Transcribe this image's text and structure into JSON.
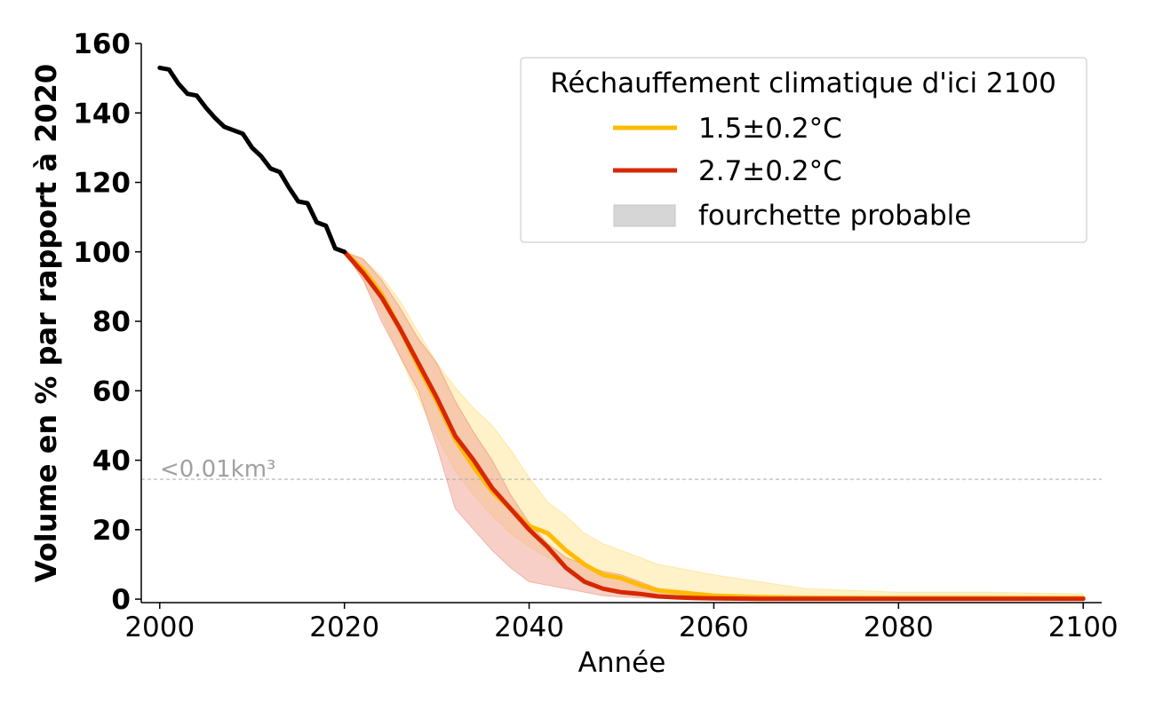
{
  "chart_data": {
    "type": "line",
    "title": "",
    "xlabel": "Année",
    "ylabel": "Volume en % par rapport à 2020",
    "xlim": [
      1998,
      2102
    ],
    "ylim": [
      -1,
      160
    ],
    "xticks": [
      2000,
      2020,
      2040,
      2060,
      2080,
      2100
    ],
    "yticks": [
      0,
      20,
      40,
      60,
      80,
      100,
      120,
      140,
      160
    ],
    "grid": false,
    "legend": {
      "title": "Réchauffement climatique d'ici 2100",
      "placement": "top-right",
      "entries": [
        "1.5±0.2°C",
        "2.7±0.2°C",
        "fourchette probable"
      ]
    },
    "threshold": {
      "y": 34.5,
      "label": "<0.01km³",
      "color": "#b0b0b0"
    },
    "historical": {
      "color": "#000000",
      "x": [
        2000,
        2001,
        2002,
        2003,
        2004,
        2005,
        2006,
        2007,
        2008,
        2009,
        2010,
        2011,
        2012,
        2013,
        2014,
        2015,
        2016,
        2017,
        2018,
        2019,
        2020
      ],
      "y": [
        153,
        152.5,
        148.5,
        145.5,
        145,
        141.5,
        138.5,
        136,
        135,
        134,
        130,
        127.5,
        124,
        123,
        118.5,
        114.5,
        114,
        108.5,
        107.5,
        101,
        100
      ]
    },
    "series": [
      {
        "name": "1.5±0.2°C",
        "color": "#ffbb00",
        "band_color": "#ffe8a3",
        "x": [
          2020,
          2022,
          2024,
          2026,
          2028,
          2030,
          2032,
          2034,
          2036,
          2038,
          2040,
          2042,
          2044,
          2046,
          2048,
          2050,
          2052,
          2054,
          2056,
          2058,
          2060,
          2065,
          2070,
          2080,
          2090,
          2100
        ],
        "y": [
          100,
          95,
          88,
          78,
          67,
          57,
          46,
          38,
          31,
          26,
          21,
          19,
          14,
          10,
          7,
          6,
          4,
          2.5,
          2,
          1.5,
          1,
          0.6,
          0.4,
          0.3,
          0.3,
          0.3
        ],
        "lower": [
          100,
          92,
          82,
          70,
          58,
          47,
          37,
          30,
          24,
          19,
          15,
          12,
          9,
          6,
          4,
          3,
          2,
          1.5,
          1,
          0.8,
          0.5,
          0.2,
          0.1,
          0.1,
          0.1,
          0.1
        ],
        "upper": [
          100,
          98,
          93,
          86,
          77,
          68,
          61,
          55,
          50,
          43,
          35,
          28,
          24,
          19,
          16,
          14,
          12,
          10,
          9,
          8,
          7,
          5,
          3,
          2,
          2,
          1.5
        ]
      },
      {
        "name": "2.7±0.2°C",
        "color": "#d62800",
        "band_color": "#f0a898",
        "x": [
          2020,
          2022,
          2024,
          2026,
          2028,
          2030,
          2032,
          2034,
          2036,
          2038,
          2040,
          2042,
          2044,
          2046,
          2048,
          2050,
          2052,
          2054,
          2056,
          2058,
          2060,
          2065,
          2070,
          2080,
          2090,
          2100
        ],
        "y": [
          100,
          94,
          87,
          78,
          68,
          58,
          47,
          40,
          32,
          26,
          20,
          15,
          9,
          5,
          3,
          2,
          1.5,
          0.8,
          0.5,
          0.3,
          0.2,
          0.1,
          0.1,
          0.1,
          0.1,
          0.1
        ],
        "lower": [
          100,
          92,
          80,
          70,
          60,
          44,
          26,
          20,
          14,
          9,
          5,
          4,
          3,
          2,
          1,
          0.6,
          0.4,
          0.2,
          0.1,
          0.1,
          0.1,
          0,
          0,
          0,
          0,
          0
        ],
        "upper": [
          100,
          98,
          92,
          84,
          75,
          68,
          57,
          48,
          40,
          30,
          22,
          16,
          12,
          10,
          8,
          7,
          5,
          3,
          2,
          1,
          0.6,
          0.3,
          0.2,
          0.1,
          0.1,
          0.1
        ]
      }
    ]
  }
}
